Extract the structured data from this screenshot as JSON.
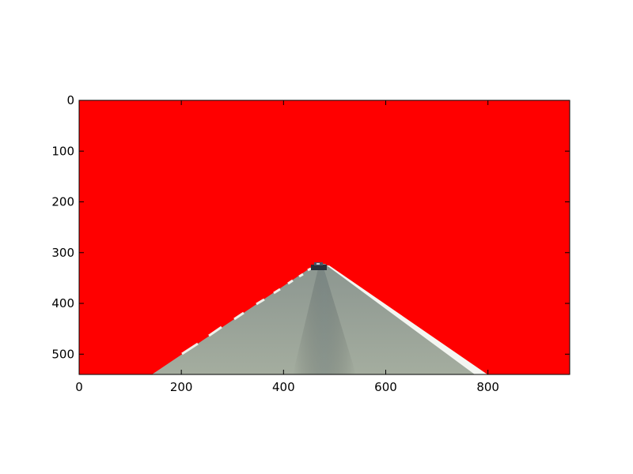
{
  "image": {
    "description_colors": {
      "mask": "#ff0000",
      "road": "#9aa39a",
      "road_dark": "#7f8a85",
      "lane_marking": "#ffffff",
      "vehicle": "#2a2f3a"
    },
    "width_units": 960,
    "height_units": 540
  },
  "axes": {
    "x_ticks": [
      "0",
      "200",
      "400",
      "600",
      "800"
    ],
    "y_ticks": [
      "0",
      "100",
      "200",
      "300",
      "400",
      "500"
    ],
    "x_tick_values": [
      0,
      200,
      400,
      600,
      800
    ],
    "y_tick_values": [
      0,
      100,
      200,
      300,
      400,
      500
    ],
    "xlim": [
      0,
      960
    ],
    "ylim": [
      540,
      0
    ]
  }
}
